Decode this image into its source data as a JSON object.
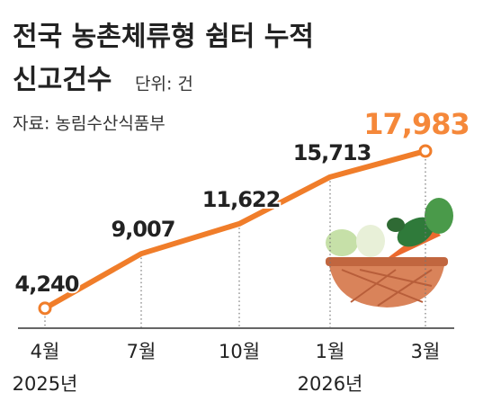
{
  "chart_data": {
    "type": "line",
    "title": [
      "전국 농촌체류형 쉼터 누적",
      "신고건수"
    ],
    "subtitle": "단위: 건",
    "source": "자료: 농림수산식품부",
    "categories": [
      "4월",
      "7월",
      "10월",
      "1월",
      "3월"
    ],
    "year_labels": [
      "2025년",
      null,
      null,
      "2026년",
      null
    ],
    "values": [
      4240,
      9007,
      11622,
      15713,
      17983
    ],
    "value_labels": [
      "4,240",
      "9,007",
      "11,622",
      "15,713",
      "17,983"
    ],
    "color": "#f07d2a",
    "ylim": [
      2500,
      19000
    ]
  }
}
